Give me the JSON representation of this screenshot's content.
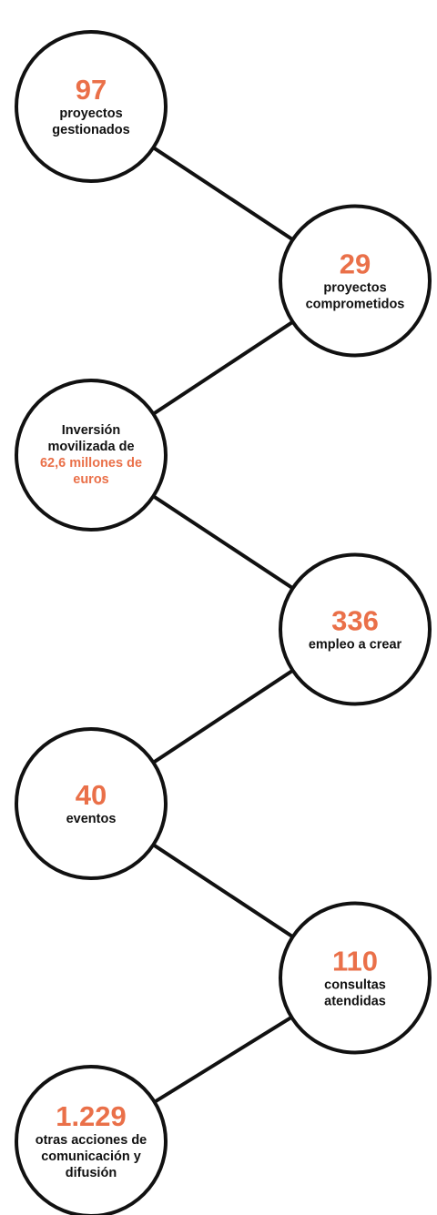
{
  "nodes": [
    {
      "number": "97",
      "lines": [
        "proyectos",
        "gestionados"
      ]
    },
    {
      "number": "29",
      "lines": [
        "proyectos",
        "comprometidos"
      ]
    },
    {
      "lines": [
        "Inversión",
        "movilizada de"
      ],
      "highlight": [
        "62,6 millones de",
        "euros"
      ]
    },
    {
      "number": "336",
      "lines": [
        "empleo a crear"
      ]
    },
    {
      "number": "40",
      "lines": [
        "eventos"
      ]
    },
    {
      "number": "110",
      "lines": [
        "consultas",
        "atendidas"
      ]
    },
    {
      "number": "1.229",
      "lines": [
        "otras acciones de",
        "comunicación y",
        "difusión"
      ]
    }
  ]
}
